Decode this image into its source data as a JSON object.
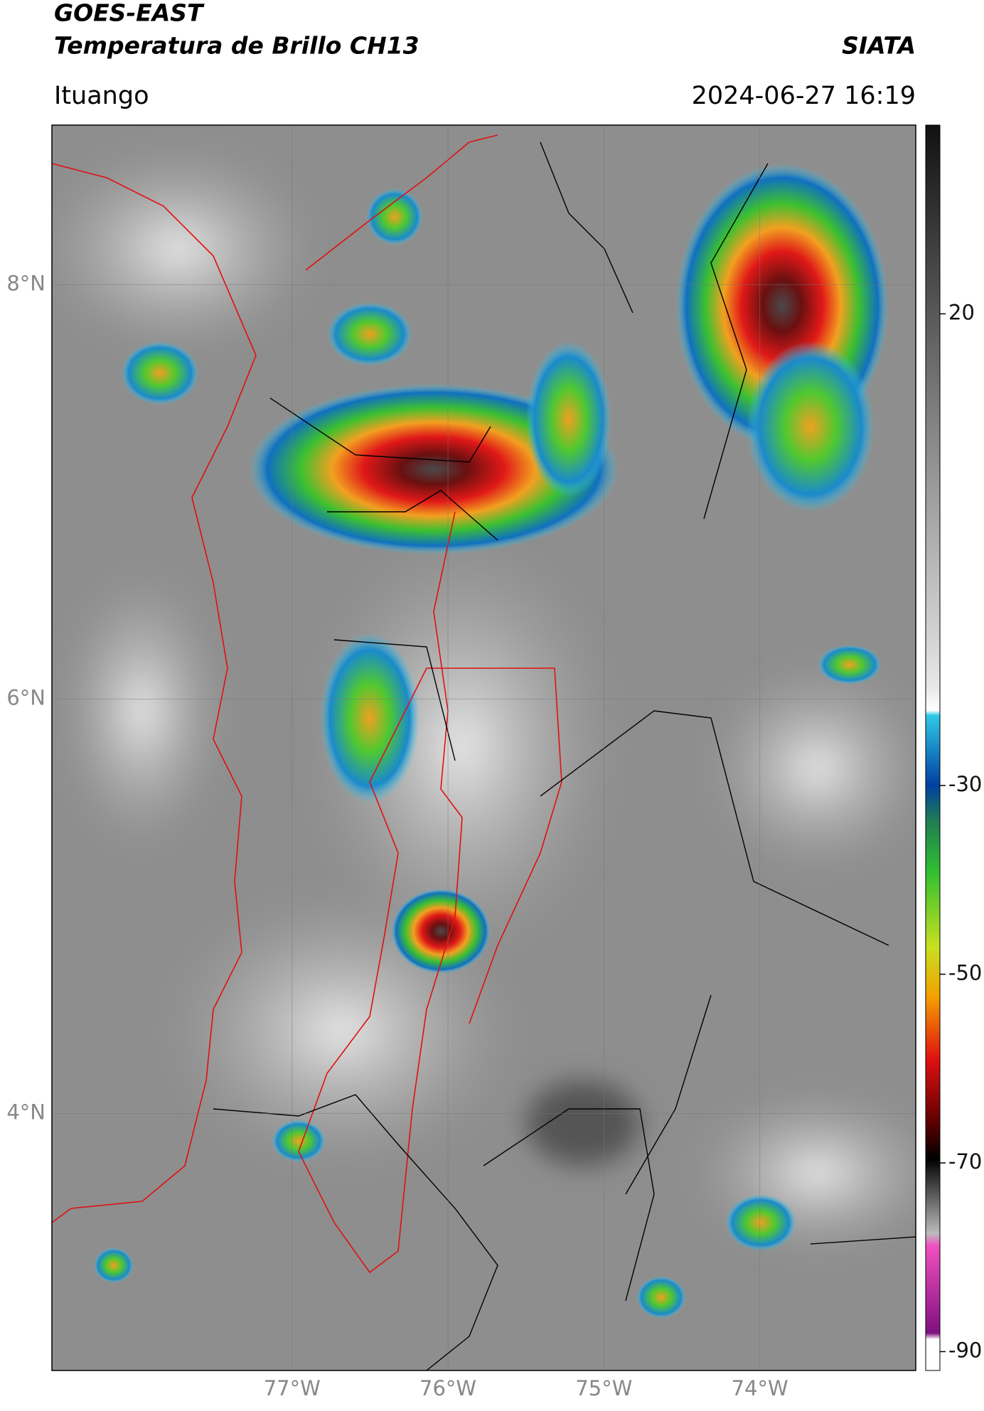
{
  "header": {
    "title": "GOES-EAST",
    "subtitle": "Temperatura de Brillo CH13",
    "agency": "SIATA",
    "location": "Ituango",
    "datetime": "2024-06-27 16:19"
  },
  "map": {
    "xlim": [
      -78.54,
      -73.0
    ],
    "ylim": [
      2.76,
      8.77
    ],
    "xticks": [
      {
        "value": -77,
        "label": "77°W"
      },
      {
        "value": -76,
        "label": "76°W"
      },
      {
        "value": -75,
        "label": "75°W"
      },
      {
        "value": -74,
        "label": "74°W"
      }
    ],
    "yticks": [
      {
        "value": 8,
        "label": "8°N"
      },
      {
        "value": 6,
        "label": "6°N"
      },
      {
        "value": 4,
        "label": "4°N"
      }
    ],
    "grid": true
  },
  "colorbar": {
    "lim": [
      -92,
      40
    ],
    "ticks": [
      20,
      -30,
      -50,
      -70,
      -90
    ]
  }
}
